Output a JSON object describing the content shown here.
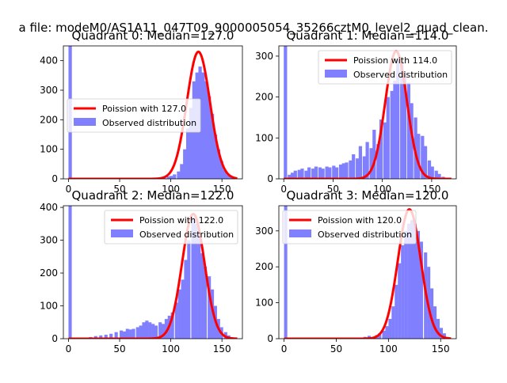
{
  "figure_title": "a file: modeM0/AS1A11_047T09_9000005054_35266cztM0_level2_quad_clean.",
  "colors": {
    "fit_line": "#ff0000",
    "hist_fill": "#8080ff",
    "axis": "#000000"
  },
  "legend_labels": {
    "fit_prefix": "Poission with ",
    "hist": "Observed distribution"
  },
  "chart_data": [
    {
      "type": "bar",
      "title": "Quadrant 0: Median=127.0",
      "median": 127.0,
      "fit_label": "Poission with 127.0",
      "legend_position": "center-left",
      "xlim": [
        -5,
        170
      ],
      "ylim": [
        0,
        450
      ],
      "xticks": [
        0,
        50,
        100,
        150
      ],
      "yticks": [
        0,
        100,
        200,
        300,
        400
      ],
      "bin_width": 3.3,
      "bins": [
        {
          "x": 0,
          "y": 450
        },
        {
          "x": 66,
          "y": 2
        },
        {
          "x": 76,
          "y": 3
        },
        {
          "x": 86,
          "y": 3
        },
        {
          "x": 92,
          "y": 4
        },
        {
          "x": 96,
          "y": 8
        },
        {
          "x": 99,
          "y": 10
        },
        {
          "x": 102,
          "y": 15
        },
        {
          "x": 106,
          "y": 25
        },
        {
          "x": 109,
          "y": 50
        },
        {
          "x": 112,
          "y": 100
        },
        {
          "x": 115,
          "y": 170
        },
        {
          "x": 118,
          "y": 240
        },
        {
          "x": 121,
          "y": 330
        },
        {
          "x": 124,
          "y": 360
        },
        {
          "x": 127,
          "y": 380
        },
        {
          "x": 130,
          "y": 360
        },
        {
          "x": 133,
          "y": 330
        },
        {
          "x": 136,
          "y": 280
        },
        {
          "x": 139,
          "y": 220
        },
        {
          "x": 142,
          "y": 150
        },
        {
          "x": 145,
          "y": 100
        },
        {
          "x": 148,
          "y": 60
        },
        {
          "x": 151,
          "y": 30
        },
        {
          "x": 154,
          "y": 15
        },
        {
          "x": 157,
          "y": 8
        },
        {
          "x": 160,
          "y": 3
        }
      ],
      "curve": {
        "mu": 127.0,
        "sigma": 11.3,
        "peak": 430,
        "x_range": [
          0,
          165
        ]
      }
    },
    {
      "type": "bar",
      "title": "Quadrant 1: Median=114.0",
      "median": 114.0,
      "fit_label": "Poission with 114.0",
      "legend_position": "top-right",
      "xlim": [
        -5,
        175
      ],
      "ylim": [
        0,
        325
      ],
      "xticks": [
        0,
        50,
        100,
        150
      ],
      "yticks": [
        0,
        100,
        200,
        300
      ],
      "bin_width": 3.4,
      "bins": [
        {
          "x": 0,
          "y": 325
        },
        {
          "x": 4,
          "y": 10
        },
        {
          "x": 7,
          "y": 15
        },
        {
          "x": 10,
          "y": 20
        },
        {
          "x": 14,
          "y": 22
        },
        {
          "x": 17,
          "y": 25
        },
        {
          "x": 21,
          "y": 20
        },
        {
          "x": 24,
          "y": 28
        },
        {
          "x": 28,
          "y": 25
        },
        {
          "x": 31,
          "y": 30
        },
        {
          "x": 35,
          "y": 28
        },
        {
          "x": 38,
          "y": 25
        },
        {
          "x": 42,
          "y": 30
        },
        {
          "x": 45,
          "y": 28
        },
        {
          "x": 49,
          "y": 32
        },
        {
          "x": 52,
          "y": 28
        },
        {
          "x": 56,
          "y": 35
        },
        {
          "x": 59,
          "y": 38
        },
        {
          "x": 62,
          "y": 40
        },
        {
          "x": 66,
          "y": 45
        },
        {
          "x": 69,
          "y": 60
        },
        {
          "x": 73,
          "y": 50
        },
        {
          "x": 76,
          "y": 80
        },
        {
          "x": 80,
          "y": 55
        },
        {
          "x": 83,
          "y": 90
        },
        {
          "x": 87,
          "y": 75
        },
        {
          "x": 90,
          "y": 120
        },
        {
          "x": 94,
          "y": 85
        },
        {
          "x": 97,
          "y": 145
        },
        {
          "x": 101,
          "y": 138
        },
        {
          "x": 104,
          "y": 200
        },
        {
          "x": 108,
          "y": 215
        },
        {
          "x": 111,
          "y": 240
        },
        {
          "x": 114,
          "y": 290
        },
        {
          "x": 118,
          "y": 285
        },
        {
          "x": 121,
          "y": 262
        },
        {
          "x": 125,
          "y": 235
        },
        {
          "x": 128,
          "y": 185
        },
        {
          "x": 132,
          "y": 150
        },
        {
          "x": 135,
          "y": 110
        },
        {
          "x": 139,
          "y": 105
        },
        {
          "x": 142,
          "y": 80
        },
        {
          "x": 146,
          "y": 45
        },
        {
          "x": 149,
          "y": 30
        },
        {
          "x": 153,
          "y": 20
        },
        {
          "x": 156,
          "y": 12
        },
        {
          "x": 160,
          "y": 5
        }
      ],
      "curve": {
        "mu": 114.0,
        "sigma": 11.0,
        "peak": 312,
        "x_range": [
          0,
          170
        ]
      }
    },
    {
      "type": "bar",
      "title": "Quadrant 2: Median=122.0",
      "median": 122.0,
      "fit_label": "Poission with 122.0",
      "legend_position": "top-right",
      "xlim": [
        -5,
        170
      ],
      "ylim": [
        0,
        405
      ],
      "xticks": [
        0,
        50,
        100,
        150
      ],
      "yticks": [
        0,
        100,
        200,
        300,
        400
      ],
      "bin_width": 3.2,
      "bins": [
        {
          "x": 0,
          "y": 405
        },
        {
          "x": 10,
          "y": 2
        },
        {
          "x": 20,
          "y": 5
        },
        {
          "x": 25,
          "y": 8
        },
        {
          "x": 30,
          "y": 10
        },
        {
          "x": 35,
          "y": 12
        },
        {
          "x": 40,
          "y": 15
        },
        {
          "x": 45,
          "y": 20
        },
        {
          "x": 50,
          "y": 25
        },
        {
          "x": 53,
          "y": 22
        },
        {
          "x": 56,
          "y": 30
        },
        {
          "x": 59,
          "y": 28
        },
        {
          "x": 62,
          "y": 30
        },
        {
          "x": 66,
          "y": 35
        },
        {
          "x": 69,
          "y": 40
        },
        {
          "x": 72,
          "y": 50
        },
        {
          "x": 75,
          "y": 55
        },
        {
          "x": 78,
          "y": 50
        },
        {
          "x": 81,
          "y": 45
        },
        {
          "x": 84,
          "y": 40
        },
        {
          "x": 88,
          "y": 50
        },
        {
          "x": 91,
          "y": 45
        },
        {
          "x": 94,
          "y": 60
        },
        {
          "x": 97,
          "y": 70
        },
        {
          "x": 100,
          "y": 80
        },
        {
          "x": 104,
          "y": 110
        },
        {
          "x": 107,
          "y": 150
        },
        {
          "x": 110,
          "y": 180
        },
        {
          "x": 113,
          "y": 240
        },
        {
          "x": 116,
          "y": 300
        },
        {
          "x": 120,
          "y": 370
        },
        {
          "x": 123,
          "y": 350
        },
        {
          "x": 126,
          "y": 310
        },
        {
          "x": 129,
          "y": 260
        },
        {
          "x": 132,
          "y": 220
        },
        {
          "x": 136,
          "y": 190
        },
        {
          "x": 139,
          "y": 150
        },
        {
          "x": 142,
          "y": 100
        },
        {
          "x": 145,
          "y": 60
        },
        {
          "x": 148,
          "y": 35
        },
        {
          "x": 152,
          "y": 20
        },
        {
          "x": 155,
          "y": 10
        },
        {
          "x": 158,
          "y": 4
        }
      ],
      "curve": {
        "mu": 122.0,
        "sigma": 11.0,
        "peak": 380,
        "x_range": [
          0,
          165
        ]
      }
    },
    {
      "type": "bar",
      "title": "Quadrant 3: Median=120.0",
      "median": 120.0,
      "fit_label": "Poission with 120.0",
      "legend_position": "top-left",
      "xlim": [
        -5,
        165
      ],
      "ylim": [
        0,
        370
      ],
      "xticks": [
        0,
        50,
        100,
        150
      ],
      "yticks": [
        0,
        100,
        200,
        300
      ],
      "bin_width": 3.1,
      "bins": [
        {
          "x": 0,
          "y": 370
        },
        {
          "x": 70,
          "y": 3
        },
        {
          "x": 76,
          "y": 5
        },
        {
          "x": 80,
          "y": 8
        },
        {
          "x": 84,
          "y": 5
        },
        {
          "x": 87,
          "y": 10
        },
        {
          "x": 90,
          "y": 15
        },
        {
          "x": 94,
          "y": 22
        },
        {
          "x": 97,
          "y": 35
        },
        {
          "x": 100,
          "y": 55
        },
        {
          "x": 103,
          "y": 90
        },
        {
          "x": 106,
          "y": 150
        },
        {
          "x": 109,
          "y": 210
        },
        {
          "x": 112,
          "y": 260
        },
        {
          "x": 115,
          "y": 300
        },
        {
          "x": 118,
          "y": 320
        },
        {
          "x": 121,
          "y": 330
        },
        {
          "x": 124,
          "y": 320
        },
        {
          "x": 127,
          "y": 300
        },
        {
          "x": 130,
          "y": 270
        },
        {
          "x": 134,
          "y": 240
        },
        {
          "x": 137,
          "y": 200
        },
        {
          "x": 140,
          "y": 140
        },
        {
          "x": 143,
          "y": 90
        },
        {
          "x": 146,
          "y": 55
        },
        {
          "x": 149,
          "y": 30
        },
        {
          "x": 152,
          "y": 15
        },
        {
          "x": 155,
          "y": 5
        }
      ],
      "curve": {
        "mu": 120.0,
        "sigma": 11.0,
        "peak": 360,
        "x_range": [
          0,
          160
        ]
      }
    }
  ]
}
